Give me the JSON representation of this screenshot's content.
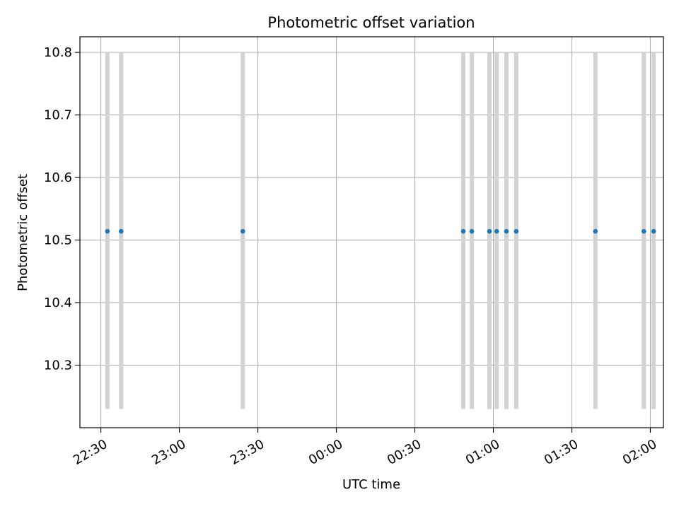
{
  "chart_data": {
    "type": "scatter",
    "title": "Photometric offset variation",
    "xlabel": "UTC time",
    "ylabel": "Photometric offset",
    "grid": true,
    "legend": "none",
    "x_ticks": [
      "22:30",
      "23:00",
      "23:30",
      "00:00",
      "00:30",
      "01:00",
      "01:30",
      "02:00"
    ],
    "y_ticks": [
      10.3,
      10.4,
      10.5,
      10.6,
      10.7,
      10.8
    ],
    "xlim": [
      "22:22",
      "02:05"
    ],
    "ylim": [
      10.2,
      10.825
    ],
    "series": [
      {
        "points": [
          {
            "x": "22:32:30",
            "y": 10.514,
            "err_low": 10.23,
            "err_high": 10.8
          },
          {
            "x": "22:37:45",
            "y": 10.514,
            "err_low": 10.23,
            "err_high": 10.8
          },
          {
            "x": "23:24:15",
            "y": 10.514,
            "err_low": 10.23,
            "err_high": 10.8
          },
          {
            "x": "00:48:30",
            "y": 10.514,
            "err_low": 10.23,
            "err_high": 10.8
          },
          {
            "x": "00:51:45",
            "y": 10.514,
            "err_low": 10.23,
            "err_high": 10.8
          },
          {
            "x": "00:58:30",
            "y": 10.514,
            "err_low": 10.23,
            "err_high": 10.8
          },
          {
            "x": "01:01:15",
            "y": 10.514,
            "err_low": 10.23,
            "err_high": 10.8
          },
          {
            "x": "01:05:00",
            "y": 10.514,
            "err_low": 10.23,
            "err_high": 10.8
          },
          {
            "x": "01:08:45",
            "y": 10.514,
            "err_low": 10.23,
            "err_high": 10.8
          },
          {
            "x": "01:39:00",
            "y": 10.514,
            "err_low": 10.23,
            "err_high": 10.8
          },
          {
            "x": "01:57:30",
            "y": 10.514,
            "err_low": 10.23,
            "err_high": 10.8
          },
          {
            "x": "02:01:15",
            "y": 10.514,
            "err_low": 10.23,
            "err_high": 10.8
          }
        ]
      }
    ],
    "colors": {
      "marker": "#1f77b4",
      "errorbar": "#d3d3d3",
      "grid": "#b0b0b0",
      "axes": "#000000"
    }
  }
}
